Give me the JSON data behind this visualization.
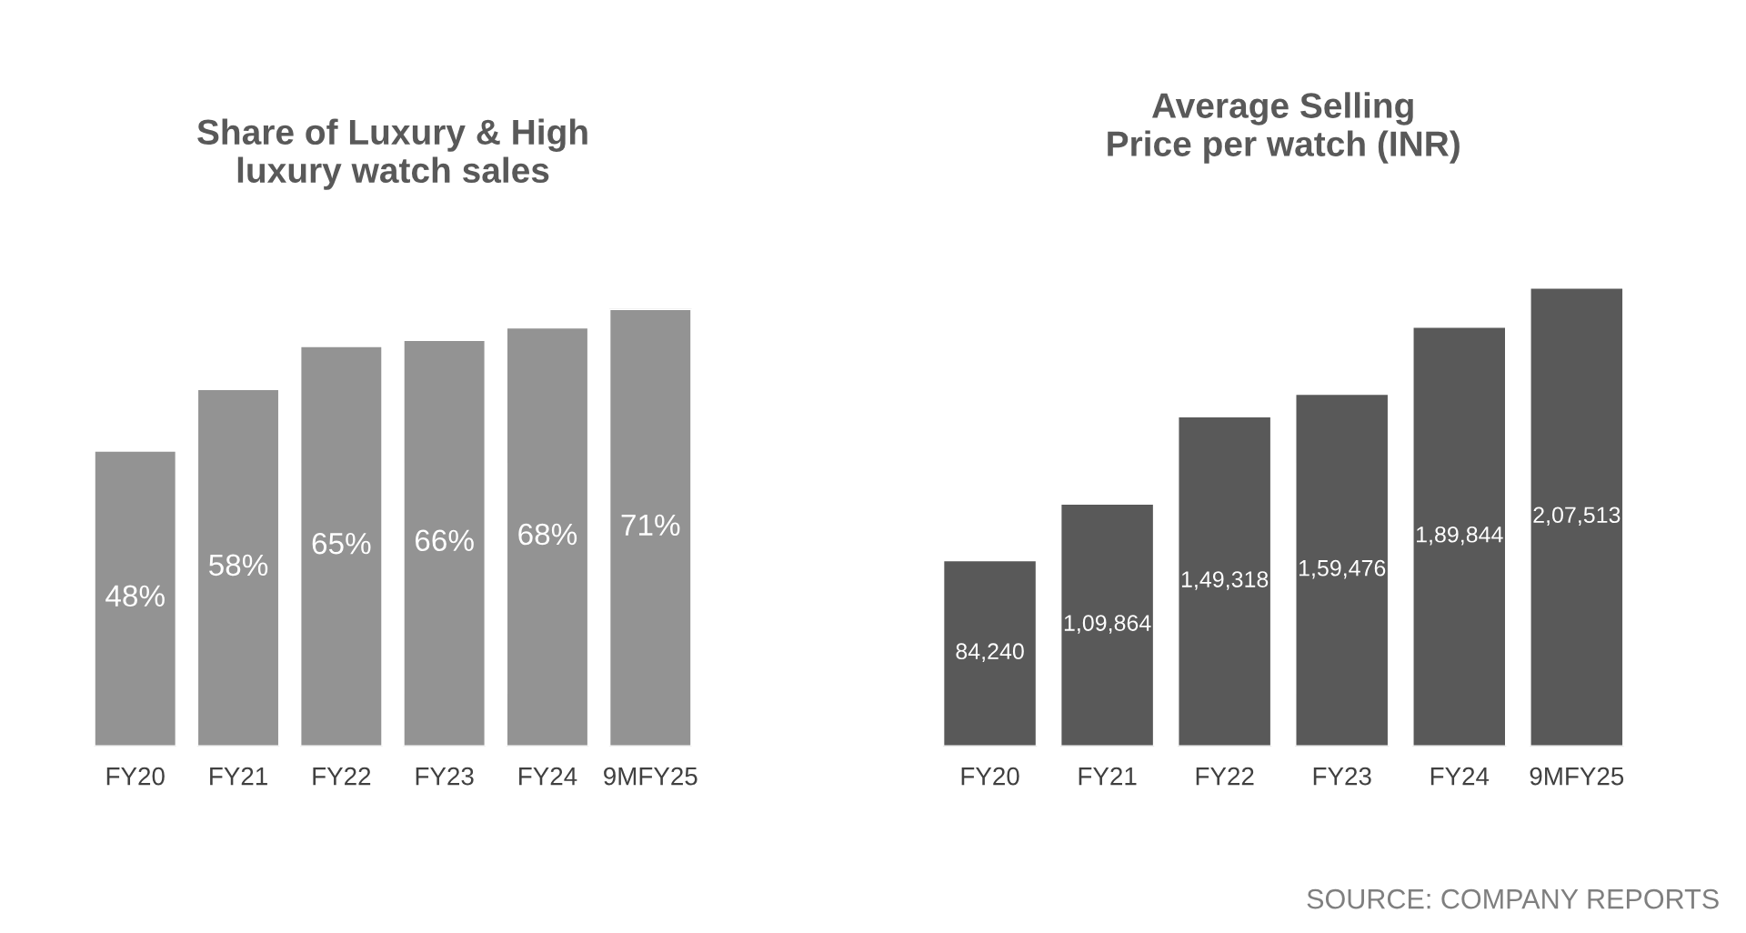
{
  "chart_data": [
    {
      "type": "bar",
      "title": "Share of Luxury & High\nluxury watch sales",
      "categories": [
        "FY20",
        "FY21",
        "FY22",
        "FY23",
        "FY24",
        "9MFY25"
      ],
      "values": [
        48,
        58,
        65,
        66,
        68,
        71
      ],
      "value_labels": [
        "48%",
        "58%",
        "65%",
        "66%",
        "68%",
        "71%"
      ],
      "color": "#939393",
      "grid": false,
      "legend": false
    },
    {
      "type": "bar",
      "title": "Average Selling\nPrice per watch (INR)",
      "categories": [
        "FY20",
        "FY21",
        "FY22",
        "FY23",
        "FY24",
        "9MFY25"
      ],
      "values": [
        84240,
        109864,
        149318,
        159476,
        189844,
        207513
      ],
      "value_labels": [
        "84,240",
        "1,09,864",
        "1,49,318",
        "1,59,476",
        "1,89,844",
        "2,07,513"
      ],
      "color": "#595959",
      "grid": false,
      "legend": false,
      "annotations": [
        "SOURCE: COMPANY REPORTS"
      ]
    }
  ]
}
